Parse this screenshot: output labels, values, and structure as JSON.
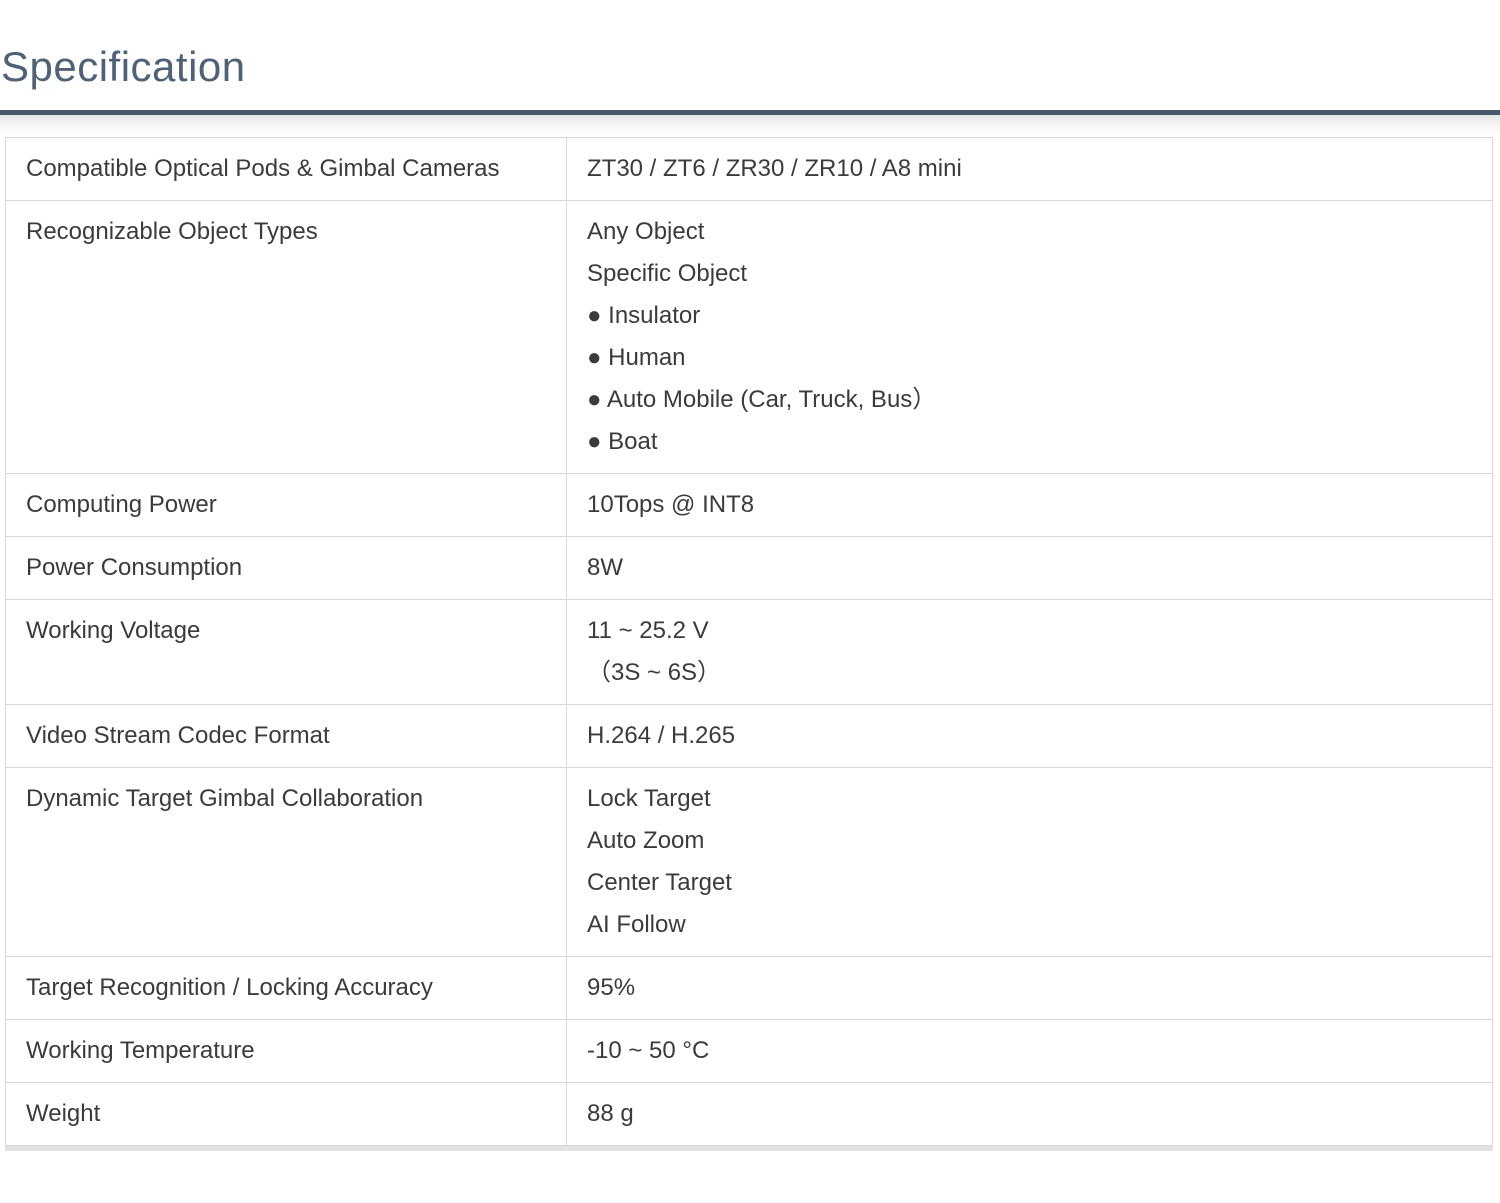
{
  "page": {
    "title": "Specification"
  },
  "colors": {
    "title": "#4e6177",
    "rule": "#48596b",
    "text": "#3b3b3b",
    "border": "#d8d8d8"
  },
  "table": {
    "rows": [
      {
        "label": "Compatible Optical Pods & Gimbal Cameras",
        "values": [
          "ZT30 / ZT6 / ZR30 / ZR10 / A8 mini"
        ]
      },
      {
        "label": "Recognizable Object Types",
        "values": [
          "Any Object",
          "Specific Object",
          "● Insulator",
          "● Human",
          "● Auto Mobile (Car, Truck, Bus）",
          "● Boat"
        ]
      },
      {
        "label": "Computing Power",
        "values": [
          "10Tops @ INT8"
        ]
      },
      {
        "label": "Power Consumption",
        "values": [
          "8W"
        ]
      },
      {
        "label": "Working Voltage",
        "values": [
          "11 ~ 25.2 V",
          "（3S ~ 6S）"
        ]
      },
      {
        "label": "Video Stream Codec Format",
        "values": [
          "H.264 / H.265"
        ]
      },
      {
        "label": "Dynamic Target Gimbal Collaboration",
        "values": [
          "Lock Target",
          "Auto Zoom",
          "Center Target",
          "AI Follow"
        ]
      },
      {
        "label": "Target Recognition / Locking Accuracy",
        "values": [
          "95%"
        ]
      },
      {
        "label": "Working Temperature",
        "values": [
          "-10 ~ 50 °C"
        ]
      },
      {
        "label": "Weight",
        "values": [
          "88 g"
        ]
      }
    ]
  }
}
